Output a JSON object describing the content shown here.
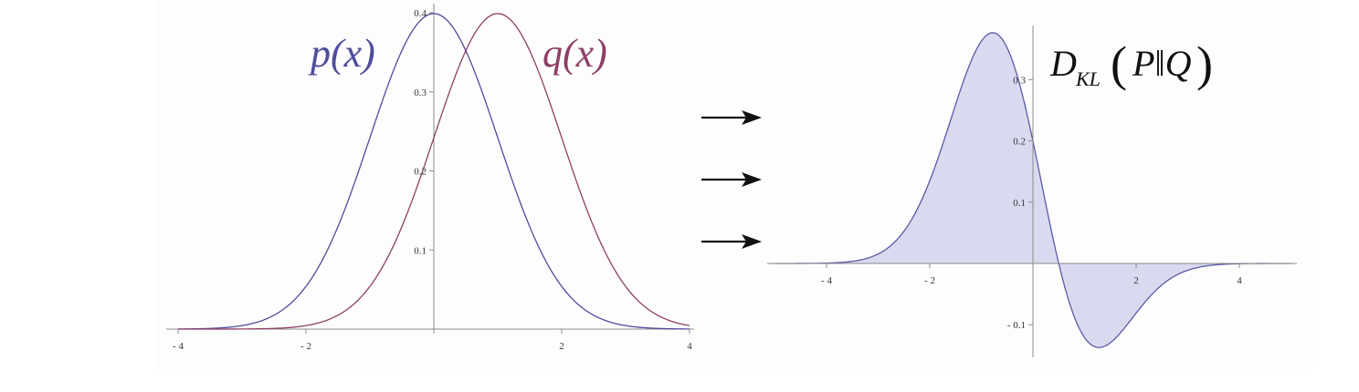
{
  "chart_data": [
    {
      "type": "line",
      "x_range": [
        -4,
        4
      ],
      "ylim": [
        0,
        0.4
      ],
      "x_ticks": [
        {
          "value": -4,
          "label": "- 4"
        },
        {
          "value": -2,
          "label": "- 2"
        },
        {
          "value": 2,
          "label": "2"
        },
        {
          "value": 4,
          "label": "4"
        }
      ],
      "y_ticks": [
        {
          "value": 0.1,
          "label": "0.1"
        },
        {
          "value": 0.2,
          "label": "0.2"
        },
        {
          "value": 0.3,
          "label": "0.3"
        },
        {
          "value": 0.4,
          "label": "0.4"
        }
      ],
      "series": [
        {
          "name": "p(x)",
          "mean": 0,
          "sd": 1,
          "color": "#4e4d9c"
        },
        {
          "name": "q(x)",
          "mean": 1,
          "sd": 1,
          "color": "#8e3f68"
        }
      ],
      "grid": false
    },
    {
      "type": "area",
      "title": "D_KL(P||Q)",
      "x_range": [
        -5,
        5
      ],
      "ylim": [
        -0.14,
        0.36
      ],
      "function": "p(x) * log(p(x)/q(x)) with p ~ N(0,1), q ~ N(1,1)",
      "x_ticks": [
        {
          "value": -4,
          "label": "- 4"
        },
        {
          "value": -2,
          "label": "- 2"
        },
        {
          "value": 2,
          "label": "2"
        },
        {
          "value": 4,
          "label": "4"
        }
      ],
      "y_ticks": [
        {
          "value": -0.1,
          "label": "- 0.1"
        },
        {
          "value": 0.1,
          "label": "0.1"
        },
        {
          "value": 0.2,
          "label": "0.2"
        },
        {
          "value": 0.3,
          "label": "0.3"
        }
      ],
      "fill_color": "#d9daef",
      "line_color": "#5a5aa6",
      "grid": false
    }
  ],
  "labels": {
    "p": "p(x)",
    "q": "q(x)",
    "kl_D": "D",
    "kl_sub": "KL",
    "kl_open": "(",
    "kl_arg": "P‖Q",
    "kl_close": ")"
  },
  "colors": {
    "p": "#4e4d9c",
    "q": "#8e3f68",
    "arrow": "#111111"
  },
  "arrow_count": 3
}
